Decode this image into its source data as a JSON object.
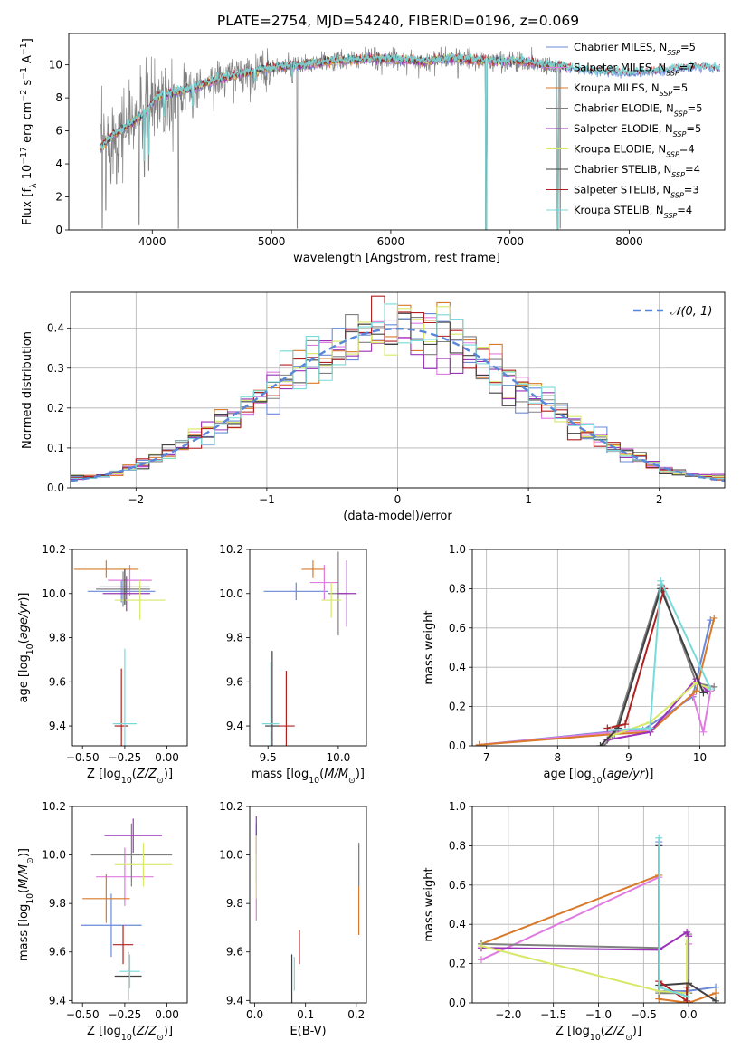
{
  "figure": {
    "title": "PLATE=2754, MJD=54240, FIBERID=0196, z=0.069"
  },
  "model_colors": [
    "#6a8ad8",
    "#e07be0",
    "#d87a2a",
    "#808080",
    "#9b32b8",
    "#d8e868",
    "#404040",
    "#b02020",
    "#7adada"
  ],
  "chart_data": [
    {
      "id": "spectrum",
      "type": "line",
      "title": "PLATE=2754, MJD=54240, FIBERID=0196, z=0.069",
      "xlabel": "wavelength [Angstrom, rest frame]",
      "ylabel": "Flux [f_λ 10^-17 erg cm^-2 s^-1 A^-1]",
      "xlim": [
        3300,
        8800
      ],
      "ylim": [
        0,
        11.9
      ],
      "xticks": [
        4000,
        5000,
        6000,
        7000,
        8000
      ],
      "yticks": [
        0,
        2,
        4,
        6,
        8,
        10
      ],
      "grid": false,
      "legend": "upper-right",
      "legend_entries": [
        {
          "base": "Chabrier MILES, N",
          "sub": "SSP",
          "tail": "=5",
          "color": "#6a8ad8"
        },
        {
          "base": "Salpeter MILES, N",
          "sub": "SSP",
          "tail": "=7",
          "color": "#e07be0"
        },
        {
          "base": "Kroupa MILES, N",
          "sub": "SSP",
          "tail": "=5",
          "color": "#d87a2a"
        },
        {
          "base": "Chabrier ELODIE, N",
          "sub": "SSP",
          "tail": "=5",
          "color": "#808080"
        },
        {
          "base": "Salpeter ELODIE, N",
          "sub": "SSP",
          "tail": "=5",
          "color": "#9b32b8"
        },
        {
          "base": "Kroupa ELODIE, N",
          "sub": "SSP",
          "tail": "=4",
          "color": "#d8e868"
        },
        {
          "base": "Chabrier STELIB, N",
          "sub": "SSP",
          "tail": "=4",
          "color": "#404040"
        },
        {
          "base": "Salpeter STELIB, N",
          "sub": "SSP",
          "tail": "=3",
          "color": "#b02020"
        },
        {
          "base": "Kroupa STELIB, N",
          "sub": "SSP",
          "tail": "=4",
          "color": "#7adada"
        }
      ],
      "continuum": [
        [
          3570,
          5.0
        ],
        [
          3650,
          5.6
        ],
        [
          3750,
          6.1
        ],
        [
          3850,
          6.6
        ],
        [
          3950,
          7.2
        ],
        [
          4050,
          8.1
        ],
        [
          4150,
          8.3
        ],
        [
          4300,
          8.5
        ],
        [
          4500,
          9.0
        ],
        [
          4700,
          9.4
        ],
        [
          4900,
          9.7
        ],
        [
          5100,
          9.9
        ],
        [
          5300,
          10.0
        ],
        [
          5500,
          10.2
        ],
        [
          5700,
          10.3
        ],
        [
          5900,
          10.4
        ],
        [
          6100,
          10.3
        ],
        [
          6300,
          10.2
        ],
        [
          6500,
          10.4
        ],
        [
          6700,
          10.3
        ],
        [
          6900,
          10.2
        ],
        [
          7100,
          10.2
        ],
        [
          7300,
          10.0
        ],
        [
          7450,
          9.9
        ],
        [
          7600,
          9.7
        ],
        [
          7800,
          9.6
        ],
        [
          8000,
          9.5
        ],
        [
          8200,
          9.6
        ],
        [
          8400,
          9.8
        ],
        [
          8600,
          9.9
        ],
        [
          8750,
          9.8
        ]
      ],
      "data_dips": [
        [
          3580,
          0.1
        ],
        [
          3610,
          1.2
        ],
        [
          3700,
          2.8
        ],
        [
          3890,
          0.3
        ],
        [
          3935,
          3.2
        ],
        [
          3970,
          3.6
        ],
        [
          4100,
          6.0
        ],
        [
          4220,
          0.1
        ],
        [
          4340,
          6.8
        ],
        [
          4860,
          8.5
        ],
        [
          5175,
          8.9
        ],
        [
          5215,
          0.1
        ],
        [
          5890,
          9.7
        ],
        [
          6563,
          9.2
        ],
        [
          6800,
          0.1
        ],
        [
          7420,
          0.1
        ]
      ],
      "model_dips": [
        [
          3935,
          4.2
        ],
        [
          3970,
          4.6
        ],
        [
          4100,
          6.9
        ],
        [
          4340,
          7.5
        ],
        [
          4860,
          9.0
        ],
        [
          5175,
          9.3
        ],
        [
          6800,
          0.0
        ],
        [
          7400,
          0.0
        ]
      ],
      "data_span": [
        3570,
        7450
      ],
      "model_span": [
        3560,
        7480
      ],
      "model_span_extended": [
        7450,
        8760
      ]
    },
    {
      "id": "residual_hist",
      "type": "histogram",
      "xlabel": "(data-model)/error",
      "ylabel": "Normed distribution",
      "xlim": [
        -2.5,
        2.5
      ],
      "ylim": [
        0,
        0.49
      ],
      "xticks": [
        -2,
        -1,
        0,
        1,
        2
      ],
      "yticks": [
        0.0,
        0.1,
        0.2,
        0.3,
        0.4
      ],
      "grid": true,
      "legend": "upper-right",
      "legend_label": "𝒩(0, 1)",
      "reference_curve": {
        "type": "normal",
        "mean": 0,
        "sigma": 1,
        "color": "#5a86d8",
        "style": "dashed"
      },
      "bin_width": 0.1,
      "bin_start": -2.5
    },
    {
      "id": "age_vs_Z",
      "type": "scatter-errorbar",
      "xlabel": "Z [log10(Z/Z⊙)]",
      "ylabel": "age [log10(age/yr)]",
      "xlim": [
        -0.56,
        0.12
      ],
      "ylim": [
        9.31,
        10.2
      ],
      "xticks": [
        -0.5,
        -0.25,
        0.0
      ],
      "yticks": [
        9.4,
        9.6,
        9.8,
        10.0,
        10.2
      ],
      "points": [
        {
          "x": -0.27,
          "y": 10.01,
          "xerr": 0.2,
          "yerr": 0.05
        },
        {
          "x": -0.22,
          "y": 10.06,
          "xerr": 0.13,
          "yerr": 0.07
        },
        {
          "x": -0.36,
          "y": 10.11,
          "xerr": 0.19,
          "yerr": 0.04
        },
        {
          "x": -0.26,
          "y": 10.02,
          "xerr": 0.16,
          "yerr": 0.08
        },
        {
          "x": -0.24,
          "y": 10.0,
          "xerr": 0.14,
          "yerr": 0.08
        },
        {
          "x": -0.16,
          "y": 9.97,
          "xerr": 0.15,
          "yerr": 0.09
        },
        {
          "x": -0.25,
          "y": 10.03,
          "xerr": 0.15,
          "yerr": 0.08
        },
        {
          "x": -0.27,
          "y": 9.4,
          "xerr": 0.04,
          "yerr": 0.26
        },
        {
          "x": -0.25,
          "y": 9.41,
          "xerr": 0.07,
          "yerr": 0.34
        }
      ]
    },
    {
      "id": "age_vs_mass",
      "type": "scatter-errorbar",
      "xlabel": "mass [log10(M/M⊙)]",
      "ylabel": "",
      "xlim": [
        9.37,
        10.2
      ],
      "ylim": [
        9.31,
        10.2
      ],
      "xticks": [
        9.5,
        10.0
      ],
      "yticks": [
        9.4,
        9.6,
        9.8,
        10.0,
        10.2
      ],
      "points": [
        {
          "x": 9.7,
          "y": 10.01,
          "xerr": 0.23,
          "yerr": 0.04
        },
        {
          "x": 9.9,
          "y": 10.05,
          "xerr": 0.1,
          "yerr": 0.08
        },
        {
          "x": 9.82,
          "y": 10.11,
          "xerr": 0.08,
          "yerr": 0.04
        },
        {
          "x": 10.0,
          "y": 10.0,
          "xerr": 0.07,
          "yerr": 0.19
        },
        {
          "x": 10.06,
          "y": 10.0,
          "xerr": 0.07,
          "yerr": 0.15
        },
        {
          "x": 9.95,
          "y": 9.97,
          "xerr": 0.07,
          "yerr": 0.08
        },
        {
          "x": 9.53,
          "y": 9.4,
          "xerr": 0.05,
          "yerr": 0.34
        },
        {
          "x": 9.63,
          "y": 9.4,
          "xerr": 0.06,
          "yerr": 0.25
        },
        {
          "x": 9.52,
          "y": 9.41,
          "xerr": 0.06,
          "yerr": 0.28
        }
      ]
    },
    {
      "id": "massweight_vs_age",
      "type": "line",
      "xlabel": "age [log10(age/yr)]",
      "ylabel": "mass weight",
      "xlim": [
        6.8,
        10.35
      ],
      "ylim": [
        0,
        1.0
      ],
      "xticks": [
        7,
        8,
        9,
        10
      ],
      "yticks": [
        0.0,
        0.2,
        0.4,
        0.6,
        0.8,
        1.0
      ],
      "grid": true,
      "series": [
        {
          "x": [
            6.9,
            8.7,
            9.2,
            9.9,
            10.15
          ],
          "y": [
            0.005,
            0.07,
            0.08,
            0.25,
            0.64
          ]
        },
        {
          "x": [
            6.9,
            8.8,
            9.3,
            9.9,
            10.05,
            10.15
          ],
          "y": [
            0.005,
            0.07,
            0.08,
            0.26,
            0.07,
            0.28
          ]
        },
        {
          "x": [
            6.9,
            8.8,
            9.3,
            9.95,
            10.2
          ],
          "y": [
            0.005,
            0.06,
            0.07,
            0.28,
            0.65
          ]
        },
        {
          "x": [
            8.65,
            8.8,
            9.45,
            9.95,
            10.2
          ],
          "y": [
            0.0,
            0.06,
            0.82,
            0.32,
            0.3
          ]
        },
        {
          "x": [
            8.7,
            9.3,
            9.95,
            10.1
          ],
          "y": [
            0.03,
            0.07,
            0.34,
            0.28
          ]
        },
        {
          "x": [
            8.75,
            9.3,
            9.95,
            10.15
          ],
          "y": [
            0.05,
            0.12,
            0.32,
            0.29
          ]
        },
        {
          "x": [
            8.6,
            8.85,
            9.45,
            10.05
          ],
          "y": [
            0.0,
            0.09,
            0.8,
            0.27
          ]
        },
        {
          "x": [
            8.7,
            8.95,
            9.5
          ],
          "y": [
            0.09,
            0.11,
            0.8
          ]
        },
        {
          "x": [
            8.75,
            9.3,
            9.45,
            10.15
          ],
          "y": [
            0.08,
            0.09,
            0.84,
            0.29
          ]
        }
      ]
    },
    {
      "id": "mass_vs_Z",
      "type": "scatter-errorbar",
      "xlabel": "Z [log10(Z/Z⊙)]",
      "ylabel": "mass [log10(M/M⊙)]",
      "xlim": [
        -0.56,
        0.12
      ],
      "ylim": [
        9.39,
        10.2
      ],
      "xticks": [
        -0.5,
        -0.25,
        0.0
      ],
      "yticks": [
        9.4,
        9.6,
        9.8,
        10.0,
        10.2
      ],
      "points": [
        {
          "x": -0.33,
          "y": 9.71,
          "xerr": 0.18,
          "yerr": 0.13
        },
        {
          "x": -0.25,
          "y": 9.91,
          "xerr": 0.17,
          "yerr": 0.12
        },
        {
          "x": -0.36,
          "y": 9.82,
          "xerr": 0.14,
          "yerr": 0.1
        },
        {
          "x": -0.21,
          "y": 10.0,
          "xerr": 0.24,
          "yerr": 0.13
        },
        {
          "x": -0.2,
          "y": 10.08,
          "xerr": 0.17,
          "yerr": 0.07
        },
        {
          "x": -0.14,
          "y": 9.96,
          "xerr": 0.17,
          "yerr": 0.09
        },
        {
          "x": -0.23,
          "y": 9.5,
          "xerr": 0.08,
          "yerr": 0.1
        },
        {
          "x": -0.26,
          "y": 9.63,
          "xerr": 0.06,
          "yerr": 0.08
        },
        {
          "x": -0.22,
          "y": 9.52,
          "xerr": 0.06,
          "yerr": 0.07
        }
      ]
    },
    {
      "id": "mass_vs_EBV",
      "type": "scatter-errorbar",
      "xlabel": "E(B-V)",
      "ylabel": "",
      "xlim": [
        -0.01,
        0.22
      ],
      "ylim": [
        9.39,
        10.2
      ],
      "xticks": [
        0.0,
        0.1,
        0.2
      ],
      "yticks": [
        9.4,
        9.6,
        9.8,
        10.0,
        10.2
      ],
      "points": [
        {
          "x": 0.003,
          "y": 10.01,
          "xerr": 0,
          "yerr": 0.12
        },
        {
          "x": 0.003,
          "y": 9.9,
          "xerr": 0,
          "yerr": 0.17
        },
        {
          "x": 0.205,
          "y": 9.86,
          "xerr": 0,
          "yerr": 0.19
        },
        {
          "x": 0.205,
          "y": 9.96,
          "xerr": 0,
          "yerr": 0.09
        },
        {
          "x": 0.003,
          "y": 10.08,
          "xerr": 0,
          "yerr": 0.08
        },
        {
          "x": 0.003,
          "y": 9.95,
          "xerr": 0,
          "yerr": 0.13
        },
        {
          "x": 0.073,
          "y": 9.49,
          "xerr": 0,
          "yerr": 0.1
        },
        {
          "x": 0.088,
          "y": 9.62,
          "xerr": 0,
          "yerr": 0.07
        },
        {
          "x": 0.078,
          "y": 9.51,
          "xerr": 0,
          "yerr": 0.07
        }
      ]
    },
    {
      "id": "massweight_vs_Z",
      "type": "line",
      "xlabel": "Z [log10(Z/Z⊙)]",
      "ylabel": "mass weight",
      "xlim": [
        -2.4,
        0.4
      ],
      "ylim": [
        0,
        1.0
      ],
      "xticks": [
        -2.0,
        -1.5,
        -1.0,
        -0.5,
        0.0
      ],
      "yticks": [
        0.0,
        0.2,
        0.4,
        0.6,
        0.8,
        1.0
      ],
      "grid": true,
      "series": [
        {
          "x": [
            -0.33,
            -0.33,
            -0.02,
            0.3
          ],
          "y": [
            0.82,
            0.06,
            0.06,
            0.08
          ]
        },
        {
          "x": [
            -2.3,
            -0.33,
            -0.33,
            0.0,
            0.0
          ],
          "y": [
            0.22,
            0.64,
            0.06,
            0.05,
            0.3
          ]
        },
        {
          "x": [
            -2.3,
            -0.33,
            -0.33,
            0.0,
            0.3
          ],
          "y": [
            0.3,
            0.65,
            0.02,
            0.0,
            0.05
          ]
        },
        {
          "x": [
            -2.3,
            -0.33,
            -0.33,
            0.0,
            0.0
          ],
          "y": [
            0.3,
            0.28,
            0.05,
            0.05,
            0.35
          ]
        },
        {
          "x": [
            -2.3,
            -0.33,
            -0.02,
            0.0
          ],
          "y": [
            0.28,
            0.27,
            0.36,
            0.34
          ]
        },
        {
          "x": [
            -2.3,
            -0.33,
            -0.02,
            -0.02
          ],
          "y": [
            0.29,
            0.06,
            0.05,
            0.32
          ]
        },
        {
          "x": [
            -0.33,
            -0.33,
            0.0,
            0.3
          ],
          "y": [
            0.8,
            0.09,
            0.1,
            0.01
          ]
        },
        {
          "x": [
            -0.33,
            -0.02,
            -0.02
          ],
          "y": [
            0.11,
            0.01,
            0.08
          ]
        },
        {
          "x": [
            -0.33,
            -0.33,
            0.0
          ],
          "y": [
            0.84,
            0.08,
            0.03
          ]
        }
      ]
    }
  ]
}
